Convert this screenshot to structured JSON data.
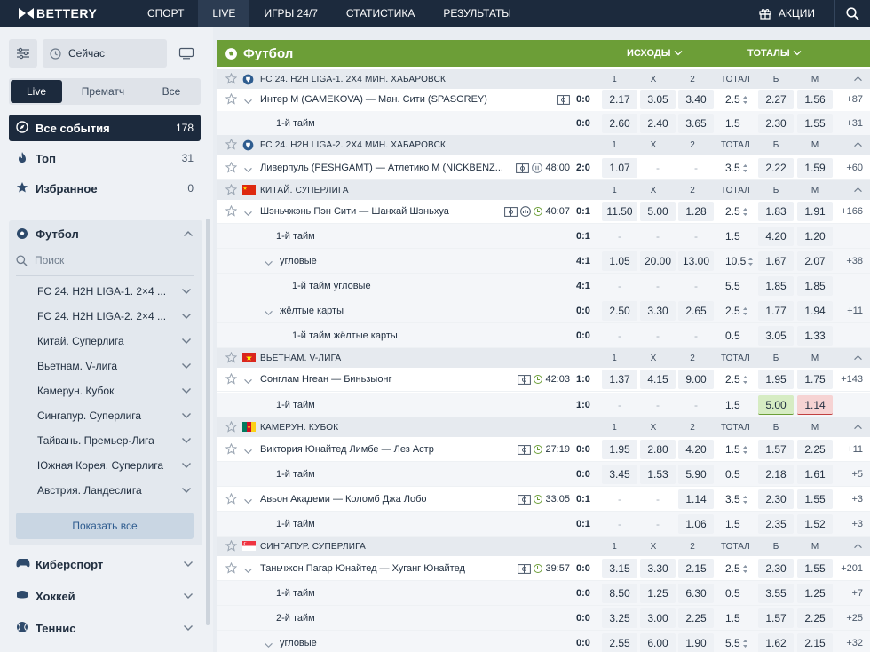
{
  "brand": "BETTERY",
  "nav": [
    "СПОРТ",
    "LIVE",
    "ИГРЫ 24/7",
    "СТАТИСТИКА",
    "РЕЗУЛЬТАТЫ"
  ],
  "promo": "АКЦИИ",
  "sidebar": {
    "now_label": "Сейчас",
    "tabs": [
      "Live",
      "Прематч",
      "Все"
    ],
    "menu": [
      {
        "label": "Все события",
        "count": "178"
      },
      {
        "label": "Топ",
        "count": "31"
      },
      {
        "label": "Избранное",
        "count": "0"
      }
    ],
    "sport_title": "Футбол",
    "search_placeholder": "Поиск",
    "leagues": [
      "FC 24. H2H LIGA-1. 2×4 ...",
      "FC 24. H2H LIGA-2. 2×4 ...",
      "Китай. Суперлига",
      "Вьетнам. V-лига",
      "Камерун. Кубок",
      "Сингапур. Суперлига",
      "Тайвань. Премьер-Лига",
      "Южная Корея. Суперлига",
      "Австрия. Ландеслига"
    ],
    "show_all": "Показать все",
    "other_sports": [
      "Киберспорт",
      "Хоккей",
      "Теннис"
    ]
  },
  "main": {
    "sport": "Футбол",
    "outcomes_label": "ИСХОДЫ",
    "totals_label": "ТОТАЛЫ",
    "col_headers": [
      "1",
      "X",
      "2",
      "ТОТАЛ",
      "Б",
      "М"
    ],
    "leagues": [
      {
        "name": "FC 24. H2H LIGA-1. 2X4 МИН. ХАБАРОВСК",
        "rows": [
          {
            "name": "Интер М (GAMEKOVA) — Ман. Сити (SPASGREY)",
            "time": "",
            "score": "0:0",
            "odds": [
              "2.17",
              "3.05",
              "3.40"
            ],
            "total": "2.5",
            "b": "2.27",
            "m": "1.56",
            "more": "+87"
          },
          {
            "name": "1-й тайм",
            "time": "",
            "score": "0:0",
            "odds": [
              "2.60",
              "2.40",
              "3.65"
            ],
            "total": "1.5",
            "b": "2.30",
            "m": "1.55",
            "more": "+31"
          }
        ]
      },
      {
        "name": "FC 24. H2H LIGA-2. 2X4 МИН. ХАБАРОВСК",
        "rows": [
          {
            "name": "Ливерпуль (PESHGAMT) — Атлетико М (NICKBENZ...",
            "time": "48:00",
            "score": "2:0",
            "odds": [
              "1.07",
              "-",
              "-"
            ],
            "total": "3.5",
            "b": "2.22",
            "m": "1.59",
            "more": "+60"
          }
        ]
      },
      {
        "name": "КИТАЙ. СУПЕРЛИГА",
        "rows": [
          {
            "name": "Шэньчжэнь Пэн Сити — Шанхай Шэньхуа",
            "time": "40:07",
            "score": "0:1",
            "odds": [
              "11.50",
              "5.00",
              "1.28"
            ],
            "total": "2.5",
            "b": "1.83",
            "m": "1.91",
            "more": "+166"
          },
          {
            "name": "1-й тайм",
            "time": "",
            "score": "0:1",
            "odds": [
              "-",
              "-",
              "-"
            ],
            "total": "1.5",
            "b": "4.20",
            "m": "1.20",
            "more": ""
          },
          {
            "name": "угловые",
            "time": "",
            "score": "4:1",
            "odds": [
              "1.05",
              "20.00",
              "13.00"
            ],
            "total": "10.5",
            "b": "1.67",
            "m": "2.07",
            "more": "+38"
          },
          {
            "name": "1-й тайм угловые",
            "time": "",
            "score": "4:1",
            "odds": [
              "-",
              "-",
              "-"
            ],
            "total": "5.5",
            "b": "1.85",
            "m": "1.85",
            "more": ""
          },
          {
            "name": "жёлтые карты",
            "time": "",
            "score": "0:0",
            "odds": [
              "2.50",
              "3.30",
              "2.65"
            ],
            "total": "2.5",
            "b": "1.77",
            "m": "1.94",
            "more": "+11"
          },
          {
            "name": "1-й тайм жёлтые карты",
            "time": "",
            "score": "0:0",
            "odds": [
              "-",
              "-",
              "-"
            ],
            "total": "0.5",
            "b": "3.05",
            "m": "1.33",
            "more": ""
          }
        ]
      },
      {
        "name": "ВЬЕТНАМ. V-ЛИГА",
        "rows": [
          {
            "name": "Сонглам Нгеан — Биньзыонг",
            "time": "42:03",
            "score": "1:0",
            "odds": [
              "1.37",
              "4.15",
              "9.00"
            ],
            "total": "2.5",
            "b": "1.95",
            "m": "1.75",
            "more": "+143"
          },
          {
            "name": "1-й тайм",
            "time": "",
            "score": "1:0",
            "odds": [
              "-",
              "-",
              "-"
            ],
            "total": "1.5",
            "b": "5.00",
            "m": "1.14",
            "more": ""
          }
        ]
      },
      {
        "name": "КАМЕРУН. КУБОК",
        "rows": [
          {
            "name": "Виктория Юнайтед Лимбе — Лез Астр",
            "time": "27:19",
            "score": "0:0",
            "odds": [
              "1.95",
              "2.80",
              "4.20"
            ],
            "total": "1.5",
            "b": "1.57",
            "m": "2.25",
            "more": "+11"
          },
          {
            "name": "1-й тайм",
            "time": "",
            "score": "0:0",
            "odds": [
              "3.45",
              "1.53",
              "5.90"
            ],
            "total": "0.5",
            "b": "2.18",
            "m": "1.61",
            "more": "+5"
          },
          {
            "name": "Авьон Академи — Коломб Джа Лобо",
            "time": "33:05",
            "score": "0:1",
            "odds": [
              "-",
              "-",
              "1.14"
            ],
            "total": "3.5",
            "b": "2.30",
            "m": "1.55",
            "more": "+3"
          },
          {
            "name": "1-й тайм",
            "time": "",
            "score": "0:1",
            "odds": [
              "-",
              "-",
              "1.06"
            ],
            "total": "1.5",
            "b": "2.35",
            "m": "1.52",
            "more": "+3"
          }
        ]
      },
      {
        "name": "СИНГАПУР. СУПЕРЛИГА",
        "rows": [
          {
            "name": "Таньчжон Пагар Юнайтед — Хуганг Юнайтед",
            "time": "39:57",
            "score": "0:0",
            "odds": [
              "3.15",
              "3.30",
              "2.15"
            ],
            "total": "2.5",
            "b": "2.30",
            "m": "1.55",
            "more": "+201"
          },
          {
            "name": "1-й тайм",
            "time": "",
            "score": "0:0",
            "odds": [
              "8.50",
              "1.25",
              "6.30"
            ],
            "total": "0.5",
            "b": "3.55",
            "m": "1.25",
            "more": "+7"
          },
          {
            "name": "2-й тайм",
            "time": "",
            "score": "0:0",
            "odds": [
              "3.25",
              "3.00",
              "2.25"
            ],
            "total": "1.5",
            "b": "1.57",
            "m": "2.25",
            "more": "+25"
          },
          {
            "name": "угловые",
            "time": "",
            "score": "0:0",
            "odds": [
              "2.55",
              "6.00",
              "1.90"
            ],
            "total": "5.5",
            "b": "1.62",
            "m": "2.15",
            "more": "+32"
          }
        ]
      }
    ]
  }
}
